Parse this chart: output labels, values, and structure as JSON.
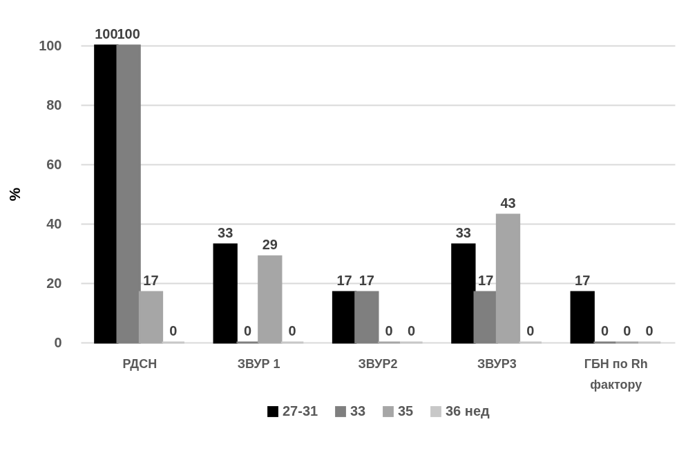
{
  "chart_data": {
    "type": "bar",
    "ylabel": "%",
    "categories": [
      "РДСН",
      "ЗВУР 1",
      "ЗВУР2",
      "ЗВУР3",
      "ГБН по Rh фактору"
    ],
    "series": [
      {
        "name": "27-31",
        "color": "#000000",
        "values": [
          100,
          33,
          17,
          33,
          17
        ]
      },
      {
        "name": "33",
        "color": "#7f7f7f",
        "values": [
          100,
          0,
          17,
          17,
          0
        ]
      },
      {
        "name": "35",
        "color": "#a6a6a6",
        "values": [
          17,
          29,
          0,
          43,
          0
        ]
      },
      {
        "name": "36 нед",
        "color": "#c8c8c8",
        "values": [
          0,
          0,
          0,
          0,
          0
        ]
      }
    ],
    "ylim": [
      0,
      100
    ],
    "yticks": [
      0,
      20,
      40,
      60,
      80,
      100
    ],
    "grid": "y",
    "legend": "bottom",
    "data_labels": true
  }
}
